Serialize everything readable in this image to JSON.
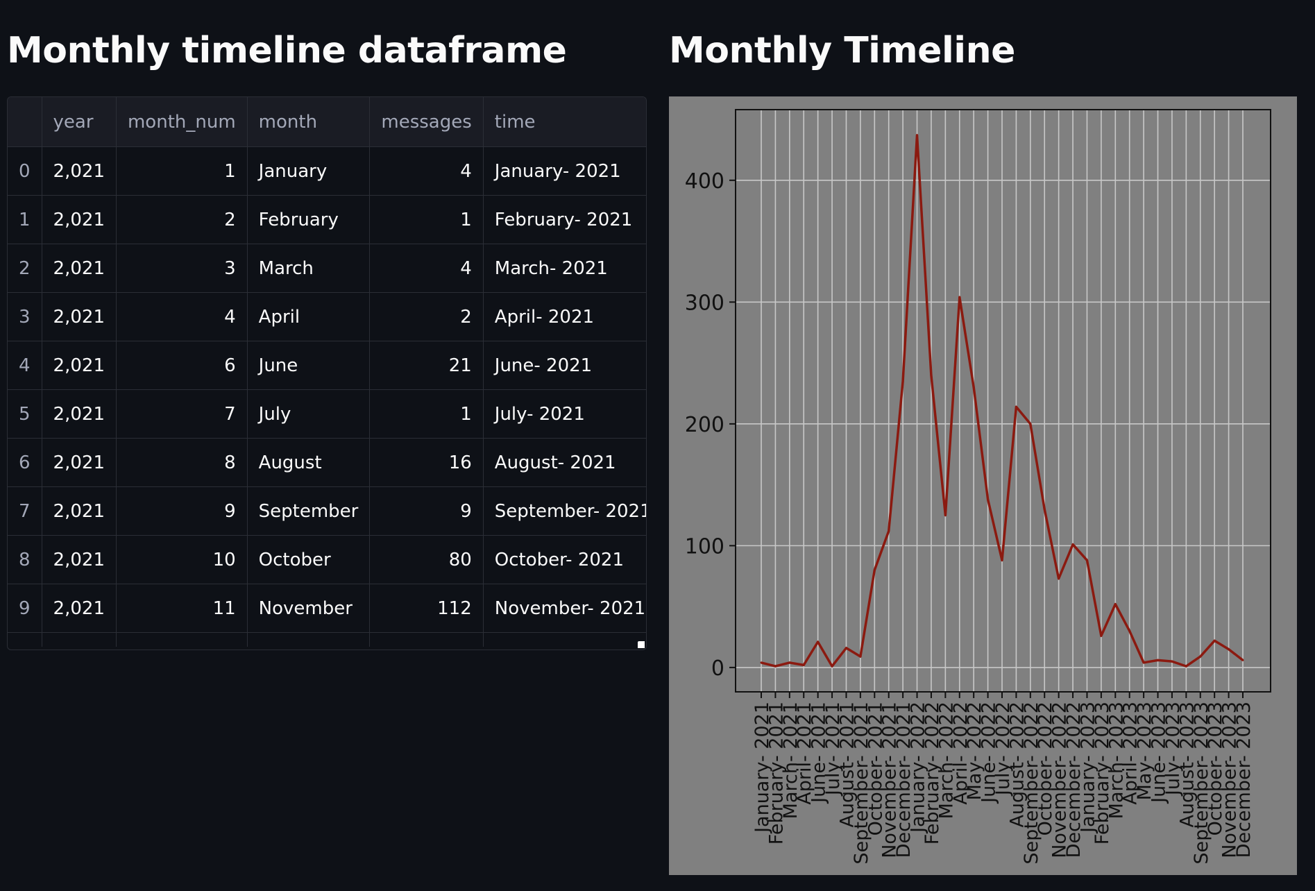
{
  "left": {
    "title": "Monthly timeline dataframe",
    "table": {
      "columns": [
        "",
        "year",
        "month_num",
        "month",
        "messages",
        "time"
      ],
      "rows": [
        [
          "0",
          "2,021",
          "1",
          "January",
          "4",
          "January- 2021"
        ],
        [
          "1",
          "2,021",
          "2",
          "February",
          "1",
          "February- 2021"
        ],
        [
          "2",
          "2,021",
          "3",
          "March",
          "4",
          "March- 2021"
        ],
        [
          "3",
          "2,021",
          "4",
          "April",
          "2",
          "April- 2021"
        ],
        [
          "4",
          "2,021",
          "6",
          "June",
          "21",
          "June- 2021"
        ],
        [
          "5",
          "2,021",
          "7",
          "July",
          "1",
          "July- 2021"
        ],
        [
          "6",
          "2,021",
          "8",
          "August",
          "16",
          "August- 2021"
        ],
        [
          "7",
          "2,021",
          "9",
          "September",
          "9",
          "September- 2021"
        ],
        [
          "8",
          "2,021",
          "10",
          "October",
          "80",
          "October- 2021"
        ],
        [
          "9",
          "2,021",
          "11",
          "November",
          "112",
          "November- 2021"
        ]
      ]
    }
  },
  "right": {
    "title": "Monthly Timeline"
  },
  "chart_data": {
    "type": "line",
    "title": "",
    "xlabel": "",
    "ylabel": "",
    "x": [
      "January- 2021",
      "February- 2021",
      "March- 2021",
      "April- 2021",
      "June- 2021",
      "July- 2021",
      "August- 2021",
      "September- 2021",
      "October- 2021",
      "November- 2021",
      "December- 2021",
      "January- 2022",
      "February- 2022",
      "March- 2022",
      "April- 2022",
      "May- 2022",
      "June- 2022",
      "July- 2022",
      "August- 2022",
      "September- 2022",
      "October- 2022",
      "November- 2022",
      "December- 2022",
      "January- 2023",
      "February- 2023",
      "March- 2023",
      "April- 2023",
      "May- 2023",
      "June- 2023",
      "July- 2023",
      "August- 2023",
      "September- 2023",
      "October- 2023",
      "November- 2023",
      "December- 2023"
    ],
    "series": [
      {
        "values": [
          4,
          1,
          4,
          2,
          21,
          1,
          16,
          9,
          80,
          112,
          235,
          437,
          240,
          125,
          304,
          230,
          138,
          88,
          214,
          200,
          130,
          73,
          101,
          88,
          26,
          52,
          30,
          4,
          6,
          5,
          1,
          9,
          22,
          15,
          6
        ]
      }
    ],
    "yticks": [
      0,
      100,
      200,
      300,
      400
    ],
    "ylim": [
      -20,
      458
    ],
    "grid": true,
    "line_color": "#8b1a10",
    "background_color": "#808080"
  }
}
